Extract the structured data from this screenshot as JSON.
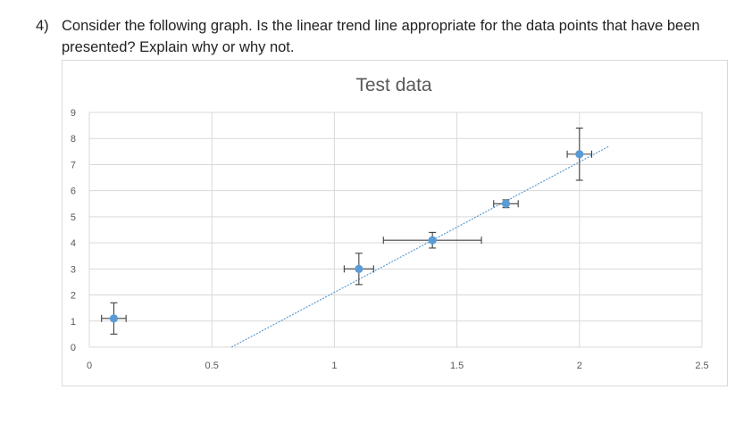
{
  "question": {
    "number": "4)",
    "text": "Consider the following graph.  Is the linear trend line appropriate for the data points that have been presented? Explain why or why not."
  },
  "chart_data": {
    "type": "scatter",
    "title": "Test data",
    "xlabel": "",
    "ylabel": "",
    "xlim": [
      0,
      2.5
    ],
    "ylim": [
      0,
      9
    ],
    "x_ticks": [
      0,
      0.5,
      1,
      1.5,
      2,
      2.5
    ],
    "x_tick_labels": [
      "0",
      "0.5",
      "1",
      "1.5",
      "2",
      "2.5"
    ],
    "y_ticks": [
      0,
      1,
      2,
      3,
      4,
      5,
      6,
      7,
      8,
      9
    ],
    "y_tick_labels": [
      "0",
      "1",
      "2",
      "3",
      "4",
      "5",
      "6",
      "7",
      "8",
      "9"
    ],
    "grid": true,
    "legend": "none",
    "marker_color": "#5b9bd5",
    "errorbar_color": "#404040",
    "trendline_color": "#5b9bd5",
    "points": [
      {
        "x": 0.1,
        "y": 1.1,
        "x_err": 0.05,
        "y_err": 0.6
      },
      {
        "x": 1.1,
        "y": 3.0,
        "x_err": 0.06,
        "y_err": 0.6
      },
      {
        "x": 1.4,
        "y": 4.1,
        "x_err": 0.2,
        "y_err": 0.3
      },
      {
        "x": 1.7,
        "y": 5.5,
        "x_err": 0.05,
        "y_err": 0.15
      },
      {
        "x": 2.0,
        "y": 7.4,
        "x_err": 0.05,
        "y_err": 1.0
      }
    ],
    "trendline": {
      "type": "linear",
      "x_start": 0.58,
      "y_start": 0,
      "x_end": 2.12,
      "y_end": 7.7
    }
  }
}
